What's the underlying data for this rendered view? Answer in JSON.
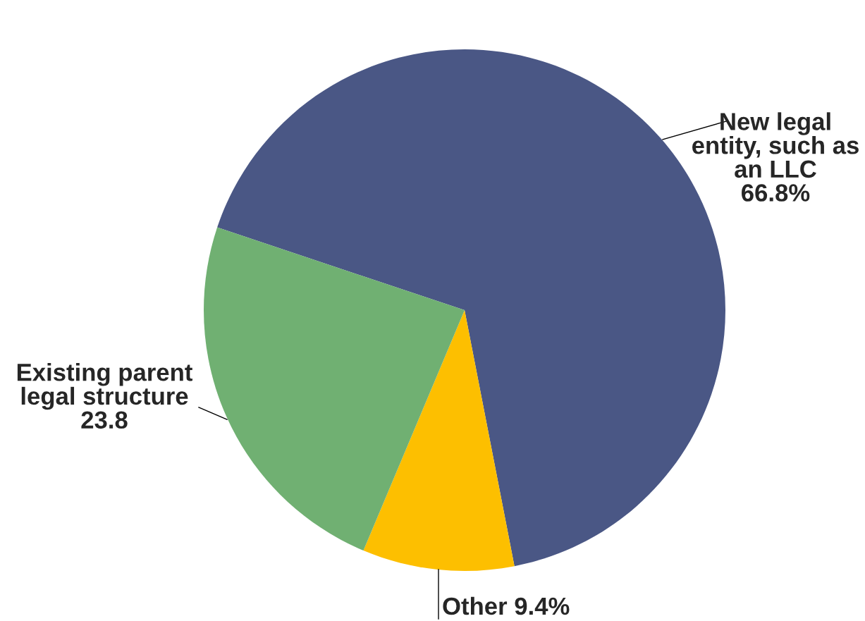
{
  "chart_data": {
    "type": "pie",
    "categories": [
      "New legal\nentity, such as\nan LLC",
      "Other",
      "Existing parent\nlegal structure"
    ],
    "values": [
      66.8,
      9.4,
      23.8
    ],
    "value_labels": [
      "66.8%",
      "9.4%",
      "23.8"
    ],
    "colors": [
      "#4a5785",
      "#fdbf00",
      "#70b072"
    ]
  }
}
